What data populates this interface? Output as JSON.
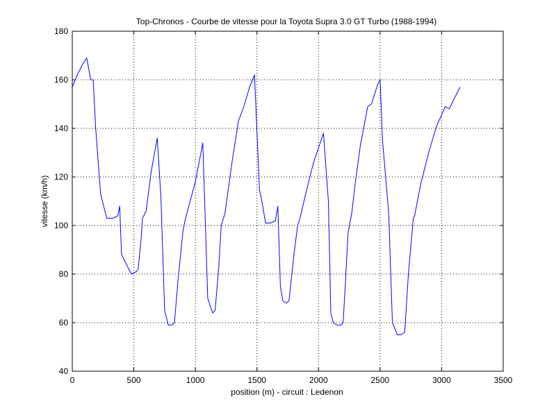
{
  "chart_data": {
    "type": "line",
    "title": "Top-Chronos - Courbe de vitesse pour la Toyota Supra 3.0 GT Turbo (1988-1994)",
    "xlabel": "position (m) - circuit : Ledenon",
    "ylabel": "vitesse (km/h)",
    "xlim": [
      0,
      3500
    ],
    "ylim": [
      40,
      180
    ],
    "xticks": [
      0,
      500,
      1000,
      1500,
      2000,
      2500,
      3000,
      3500
    ],
    "yticks": [
      40,
      60,
      80,
      100,
      120,
      140,
      160,
      180
    ],
    "grid": true,
    "line_color": "#0000ff",
    "series": [
      {
        "x": [
          0,
          40,
          80,
          117,
          150,
          170,
          190,
          230,
          280,
          330,
          370,
          385,
          400,
          440,
          480,
          520,
          535,
          560,
          570,
          600,
          640,
          690,
          720,
          750,
          780,
          810,
          830,
          860,
          900,
          920,
          1000,
          1060,
          1100,
          1140,
          1160,
          1190,
          1210,
          1240,
          1300,
          1350,
          1400,
          1440,
          1480,
          1520,
          1540,
          1570,
          1610,
          1650,
          1670,
          1690,
          1710,
          1740,
          1760,
          1800,
          1830,
          1850,
          1900,
          1960,
          2040,
          2080,
          2100,
          2120,
          2150,
          2180,
          2200,
          2220,
          2240,
          2270,
          2300,
          2340,
          2400,
          2430,
          2480,
          2500,
          2520,
          2570,
          2600,
          2640,
          2670,
          2700,
          2730,
          2770,
          2780,
          2830,
          2900,
          2960,
          3030,
          3060,
          3080,
          3100,
          3130,
          3150
        ],
        "y": [
          157,
          162,
          166,
          169,
          160,
          160,
          140,
          113,
          103,
          103,
          104,
          108,
          88,
          84,
          80,
          81,
          82,
          95,
          103,
          106,
          122,
          136,
          112,
          65,
          59,
          59,
          60,
          78,
          98,
          103,
          118,
          134,
          70,
          64,
          65,
          83,
          100,
          105,
          127,
          143,
          150,
          157,
          162,
          115,
          110,
          101,
          101,
          102,
          108,
          75,
          69,
          68,
          69,
          88,
          100,
          103,
          114,
          126,
          138,
          110,
          64,
          60,
          59,
          59,
          60,
          78,
          97,
          105,
          118,
          133,
          149,
          150,
          158,
          160,
          135,
          105,
          60,
          55,
          55,
          56,
          80,
          103,
          104,
          117,
          131,
          141,
          149,
          148,
          150,
          152,
          155,
          157
        ]
      }
    ]
  }
}
